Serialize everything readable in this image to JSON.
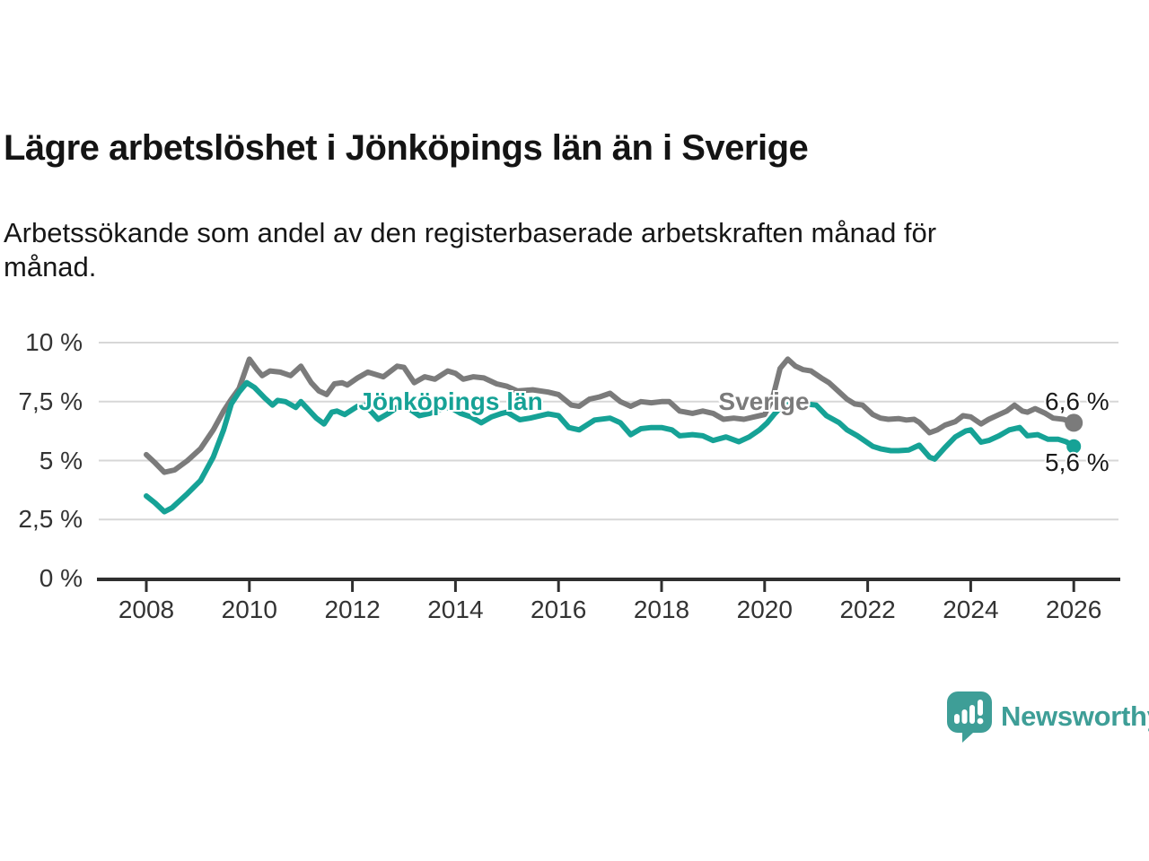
{
  "page": {
    "title": "Lägre arbetslöshet i Jönköpings län än i Sverige",
    "subtitle_lines": [
      "Arbetssökande som andel av den registerbaserade arbetskraften månad för",
      "månad."
    ]
  },
  "footer": {
    "brand": "Newsworthy",
    "logo_icon": "newsworthy-speech-bubble-barchart-icon"
  },
  "colors": {
    "sverige_gray": "#7B7B7B",
    "jonkoping_teal": "#16A296",
    "brand_teal": "#3E9E97",
    "grid": "#D7D7D7",
    "axis": "#2F2F2F",
    "tick_label": "#333333"
  },
  "chart_data": {
    "type": "line",
    "title": "Lägre arbetslöshet i Jönköpings län än i Sverige",
    "xlabel": "",
    "ylabel": "",
    "grid": true,
    "y_axis": {
      "range": [
        0,
        10
      ],
      "ticks": [
        {
          "value": 0,
          "label": "0 %"
        },
        {
          "value": 2.5,
          "label": "2,5 %"
        },
        {
          "value": 5,
          "label": "5 %"
        },
        {
          "value": 7.5,
          "label": "7,5 %"
        },
        {
          "value": 10,
          "label": "10 %"
        }
      ]
    },
    "x_axis": {
      "range": [
        2007.1,
        2026.85
      ],
      "ticks": [
        {
          "value": 2008,
          "label": "2008"
        },
        {
          "value": 2010,
          "label": "2010"
        },
        {
          "value": 2012,
          "label": "2012"
        },
        {
          "value": 2014,
          "label": "2014"
        },
        {
          "value": 2016,
          "label": "2016"
        },
        {
          "value": 2018,
          "label": "2018"
        },
        {
          "value": 2020,
          "label": "2020"
        },
        {
          "value": 2022,
          "label": "2022"
        },
        {
          "value": 2024,
          "label": "2024"
        },
        {
          "value": 2026,
          "label": "2026"
        }
      ]
    },
    "series": [
      {
        "name": "Sverige",
        "color": "#7B7B7B",
        "end_label": "6,6 %",
        "end_value": 6.6,
        "end_dot_radius": 10,
        "points": [
          [
            2008.0,
            5.25
          ],
          [
            2008.17,
            4.9
          ],
          [
            2008.35,
            4.5
          ],
          [
            2008.55,
            4.6
          ],
          [
            2008.8,
            5.0
          ],
          [
            2009.05,
            5.5
          ],
          [
            2009.3,
            6.3
          ],
          [
            2009.5,
            7.1
          ],
          [
            2009.65,
            7.6
          ],
          [
            2009.8,
            8.05
          ],
          [
            2010.0,
            9.3
          ],
          [
            2010.15,
            8.85
          ],
          [
            2010.25,
            8.6
          ],
          [
            2010.4,
            8.8
          ],
          [
            2010.6,
            8.75
          ],
          [
            2010.8,
            8.6
          ],
          [
            2011.0,
            9.0
          ],
          [
            2011.2,
            8.3
          ],
          [
            2011.35,
            7.95
          ],
          [
            2011.5,
            7.8
          ],
          [
            2011.65,
            8.25
          ],
          [
            2011.8,
            8.3
          ],
          [
            2011.9,
            8.2
          ],
          [
            2012.1,
            8.5
          ],
          [
            2012.3,
            8.75
          ],
          [
            2012.45,
            8.65
          ],
          [
            2012.6,
            8.55
          ],
          [
            2012.87,
            9.0
          ],
          [
            2013.0,
            8.95
          ],
          [
            2013.2,
            8.3
          ],
          [
            2013.4,
            8.55
          ],
          [
            2013.6,
            8.45
          ],
          [
            2013.85,
            8.8
          ],
          [
            2014.0,
            8.7
          ],
          [
            2014.15,
            8.45
          ],
          [
            2014.35,
            8.55
          ],
          [
            2014.55,
            8.5
          ],
          [
            2014.8,
            8.25
          ],
          [
            2015.0,
            8.15
          ],
          [
            2015.2,
            7.95
          ],
          [
            2015.5,
            8.0
          ],
          [
            2015.8,
            7.9
          ],
          [
            2016.0,
            7.8
          ],
          [
            2016.25,
            7.35
          ],
          [
            2016.4,
            7.3
          ],
          [
            2016.6,
            7.6
          ],
          [
            2016.8,
            7.7
          ],
          [
            2017.0,
            7.85
          ],
          [
            2017.2,
            7.5
          ],
          [
            2017.4,
            7.3
          ],
          [
            2017.6,
            7.5
          ],
          [
            2017.8,
            7.45
          ],
          [
            2018.0,
            7.5
          ],
          [
            2018.15,
            7.5
          ],
          [
            2018.35,
            7.1
          ],
          [
            2018.6,
            7.0
          ],
          [
            2018.8,
            7.1
          ],
          [
            2019.0,
            7.0
          ],
          [
            2019.2,
            6.75
          ],
          [
            2019.4,
            6.8
          ],
          [
            2019.6,
            6.75
          ],
          [
            2019.8,
            6.85
          ],
          [
            2020.0,
            6.95
          ],
          [
            2020.15,
            7.6
          ],
          [
            2020.3,
            8.9
          ],
          [
            2020.45,
            9.3
          ],
          [
            2020.6,
            9.0
          ],
          [
            2020.75,
            8.85
          ],
          [
            2020.9,
            8.8
          ],
          [
            2021.1,
            8.5
          ],
          [
            2021.25,
            8.3
          ],
          [
            2021.4,
            8.0
          ],
          [
            2021.6,
            7.6
          ],
          [
            2021.75,
            7.4
          ],
          [
            2021.9,
            7.35
          ],
          [
            2022.1,
            6.95
          ],
          [
            2022.25,
            6.8
          ],
          [
            2022.4,
            6.75
          ],
          [
            2022.6,
            6.78
          ],
          [
            2022.75,
            6.72
          ],
          [
            2022.9,
            6.75
          ],
          [
            2023.0,
            6.62
          ],
          [
            2023.2,
            6.18
          ],
          [
            2023.35,
            6.3
          ],
          [
            2023.5,
            6.5
          ],
          [
            2023.7,
            6.65
          ],
          [
            2023.85,
            6.9
          ],
          [
            2024.0,
            6.85
          ],
          [
            2024.2,
            6.55
          ],
          [
            2024.35,
            6.75
          ],
          [
            2024.55,
            6.95
          ],
          [
            2024.7,
            7.1
          ],
          [
            2024.85,
            7.35
          ],
          [
            2025.0,
            7.1
          ],
          [
            2025.1,
            7.05
          ],
          [
            2025.25,
            7.2
          ],
          [
            2025.45,
            7.0
          ],
          [
            2025.6,
            6.8
          ],
          [
            2025.8,
            6.75
          ],
          [
            2026.0,
            6.6
          ]
        ]
      },
      {
        "name": "Jönköpings län",
        "color": "#16A296",
        "end_label": "5,6 %",
        "end_value": 5.6,
        "end_dot_radius": 8,
        "points": [
          [
            2008.0,
            3.5
          ],
          [
            2008.17,
            3.2
          ],
          [
            2008.35,
            2.83
          ],
          [
            2008.5,
            3.0
          ],
          [
            2008.8,
            3.6
          ],
          [
            2009.05,
            4.15
          ],
          [
            2009.3,
            5.15
          ],
          [
            2009.5,
            6.3
          ],
          [
            2009.65,
            7.4
          ],
          [
            2009.8,
            7.9
          ],
          [
            2009.95,
            8.3
          ],
          [
            2010.1,
            8.1
          ],
          [
            2010.3,
            7.65
          ],
          [
            2010.45,
            7.35
          ],
          [
            2010.55,
            7.55
          ],
          [
            2010.7,
            7.5
          ],
          [
            2010.9,
            7.25
          ],
          [
            2011.0,
            7.5
          ],
          [
            2011.3,
            6.8
          ],
          [
            2011.45,
            6.55
          ],
          [
            2011.6,
            7.05
          ],
          [
            2011.7,
            7.1
          ],
          [
            2011.85,
            6.95
          ],
          [
            2012.1,
            7.3
          ],
          [
            2012.25,
            7.35
          ],
          [
            2012.5,
            6.75
          ],
          [
            2012.7,
            7.0
          ],
          [
            2012.9,
            7.3
          ],
          [
            2013.1,
            7.2
          ],
          [
            2013.3,
            6.9
          ],
          [
            2013.5,
            7.0
          ],
          [
            2013.75,
            7.2
          ],
          [
            2013.9,
            7.25
          ],
          [
            2014.1,
            7.0
          ],
          [
            2014.3,
            6.85
          ],
          [
            2014.5,
            6.6
          ],
          [
            2014.7,
            6.85
          ],
          [
            2014.9,
            7.0
          ],
          [
            2015.0,
            7.05
          ],
          [
            2015.25,
            6.73
          ],
          [
            2015.45,
            6.8
          ],
          [
            2015.8,
            6.98
          ],
          [
            2016.0,
            6.9
          ],
          [
            2016.2,
            6.4
          ],
          [
            2016.4,
            6.3
          ],
          [
            2016.7,
            6.72
          ],
          [
            2017.0,
            6.8
          ],
          [
            2017.2,
            6.6
          ],
          [
            2017.4,
            6.1
          ],
          [
            2017.6,
            6.35
          ],
          [
            2017.8,
            6.4
          ],
          [
            2018.0,
            6.4
          ],
          [
            2018.2,
            6.3
          ],
          [
            2018.35,
            6.05
          ],
          [
            2018.6,
            6.1
          ],
          [
            2018.8,
            6.05
          ],
          [
            2019.0,
            5.85
          ],
          [
            2019.25,
            6.0
          ],
          [
            2019.5,
            5.8
          ],
          [
            2019.7,
            6.0
          ],
          [
            2019.9,
            6.3
          ],
          [
            2020.05,
            6.6
          ],
          [
            2020.2,
            7.0
          ],
          [
            2020.4,
            7.45
          ],
          [
            2020.6,
            7.5
          ],
          [
            2020.8,
            7.4
          ],
          [
            2021.0,
            7.35
          ],
          [
            2021.2,
            6.9
          ],
          [
            2021.45,
            6.6
          ],
          [
            2021.6,
            6.3
          ],
          [
            2021.8,
            6.05
          ],
          [
            2022.1,
            5.6
          ],
          [
            2022.25,
            5.5
          ],
          [
            2022.45,
            5.42
          ],
          [
            2022.6,
            5.42
          ],
          [
            2022.8,
            5.45
          ],
          [
            2023.0,
            5.65
          ],
          [
            2023.2,
            5.15
          ],
          [
            2023.3,
            5.06
          ],
          [
            2023.5,
            5.55
          ],
          [
            2023.7,
            6.0
          ],
          [
            2023.9,
            6.25
          ],
          [
            2024.0,
            6.3
          ],
          [
            2024.2,
            5.78
          ],
          [
            2024.35,
            5.85
          ],
          [
            2024.55,
            6.05
          ],
          [
            2024.75,
            6.3
          ],
          [
            2024.95,
            6.4
          ],
          [
            2025.1,
            6.05
          ],
          [
            2025.3,
            6.1
          ],
          [
            2025.5,
            5.9
          ],
          [
            2025.7,
            5.9
          ],
          [
            2025.85,
            5.8
          ],
          [
            2026.0,
            5.6
          ]
        ]
      }
    ]
  }
}
